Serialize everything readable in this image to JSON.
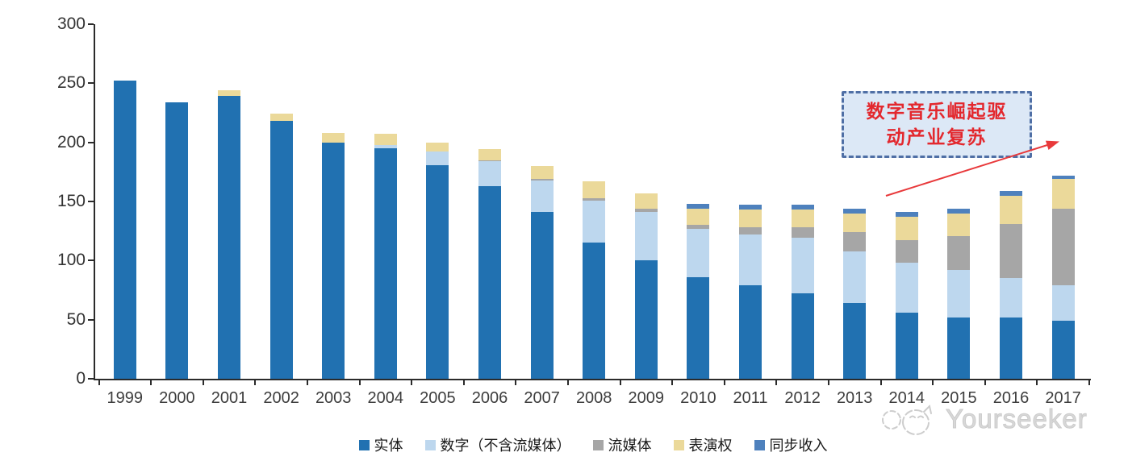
{
  "chart_data": {
    "type": "bar",
    "stacked": true,
    "categories": [
      "1999",
      "2000",
      "2001",
      "2002",
      "2003",
      "2004",
      "2005",
      "2006",
      "2007",
      "2008",
      "2009",
      "2010",
      "2011",
      "2012",
      "2013",
      "2014",
      "2015",
      "2016",
      "2017"
    ],
    "series": [
      {
        "name": "实体",
        "color": "#2171B1",
        "values": [
          252,
          234,
          239,
          218,
          200,
          195,
          181,
          163,
          141,
          115,
          100,
          86,
          79,
          72,
          64,
          56,
          52,
          52,
          49
        ]
      },
      {
        "name": "数字（不含流媒体）",
        "color": "#BDD7EE",
        "values": [
          0,
          0,
          0,
          0,
          0,
          3,
          11,
          21,
          27,
          36,
          41,
          41,
          43,
          47,
          44,
          42,
          40,
          33,
          30
        ]
      },
      {
        "name": "流媒体",
        "color": "#A6A6A6",
        "values": [
          0,
          0,
          0,
          0,
          0,
          0,
          0,
          1,
          1,
          2,
          3,
          3,
          6,
          9,
          16,
          19,
          29,
          46,
          65
        ]
      },
      {
        "name": "表演权",
        "color": "#EBD99A",
        "values": [
          0,
          0,
          5,
          6,
          8,
          9,
          8,
          9,
          11,
          14,
          13,
          14,
          15,
          15,
          16,
          20,
          19,
          24,
          25
        ]
      },
      {
        "name": "同步收入",
        "color": "#4E81BD",
        "values": [
          0,
          0,
          0,
          0,
          0,
          0,
          0,
          0,
          0,
          0,
          0,
          4,
          4,
          4,
          4,
          4,
          4,
          4,
          3
        ]
      }
    ],
    "title": "",
    "xlabel": "",
    "ylabel": "",
    "ylim": [
      0,
      300
    ],
    "yticks": [
      0,
      50,
      100,
      150,
      200,
      250,
      300
    ],
    "grid": false,
    "legend_position": "bottom",
    "annotation": {
      "text": "数字音乐崛起驱动产业复苏",
      "lines": [
        "数字音乐崛起驱",
        "动产业复苏"
      ],
      "text_color": "#e3282e",
      "box_fill": "#dce8f6",
      "box_border": "#4f6fa5",
      "arrow_color": "#e8393b"
    }
  },
  "watermark": {
    "text": "Yourseeker",
    "color": "#c9c9c9",
    "logo_icon": "cat-logo"
  }
}
